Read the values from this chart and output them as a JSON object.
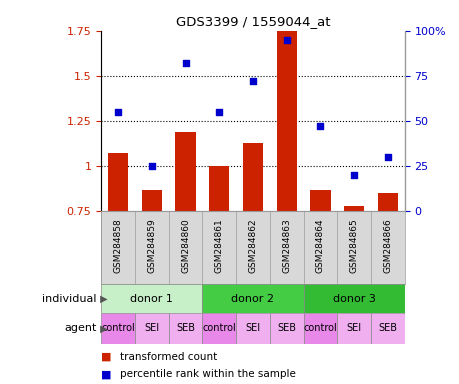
{
  "title": "GDS3399 / 1559044_at",
  "samples": [
    "GSM284858",
    "GSM284859",
    "GSM284860",
    "GSM284861",
    "GSM284862",
    "GSM284863",
    "GSM284864",
    "GSM284865",
    "GSM284866"
  ],
  "bar_values": [
    1.07,
    0.87,
    1.19,
    1.0,
    1.13,
    1.87,
    0.87,
    0.78,
    0.85
  ],
  "dot_values": [
    55,
    25,
    82,
    55,
    72,
    95,
    47,
    20,
    30
  ],
  "ylim_left": [
    0.75,
    1.75
  ],
  "ylim_right": [
    0,
    100
  ],
  "yticks_left": [
    0.75,
    1.0,
    1.25,
    1.5,
    1.75
  ],
  "yticks_right": [
    0,
    25,
    50,
    75,
    100
  ],
  "ytick_labels_left": [
    "0.75",
    "1",
    "1.25",
    "1.5",
    "1.75"
  ],
  "ytick_labels_right": [
    "0",
    "25",
    "50",
    "75",
    "100%"
  ],
  "bar_color": "#cc2200",
  "dot_color": "#0000cc",
  "gsm_bg_color": "#d8d8d8",
  "individuals": [
    {
      "label": "donor 1",
      "start": 0,
      "end": 3,
      "color": "#c8f0c8"
    },
    {
      "label": "donor 2",
      "start": 3,
      "end": 6,
      "color": "#44cc44"
    },
    {
      "label": "donor 3",
      "start": 6,
      "end": 9,
      "color": "#33bb33"
    }
  ],
  "agents": [
    "control",
    "SEI",
    "SEB",
    "control",
    "SEI",
    "SEB",
    "control",
    "SEI",
    "SEB"
  ],
  "agent_control_color": "#e888e8",
  "agent_sei_seb_color": "#f0b0f0",
  "legend_bar_label": "transformed count",
  "legend_dot_label": "percentile rank within the sample",
  "hline_values": [
    1.0,
    1.25,
    1.5
  ]
}
